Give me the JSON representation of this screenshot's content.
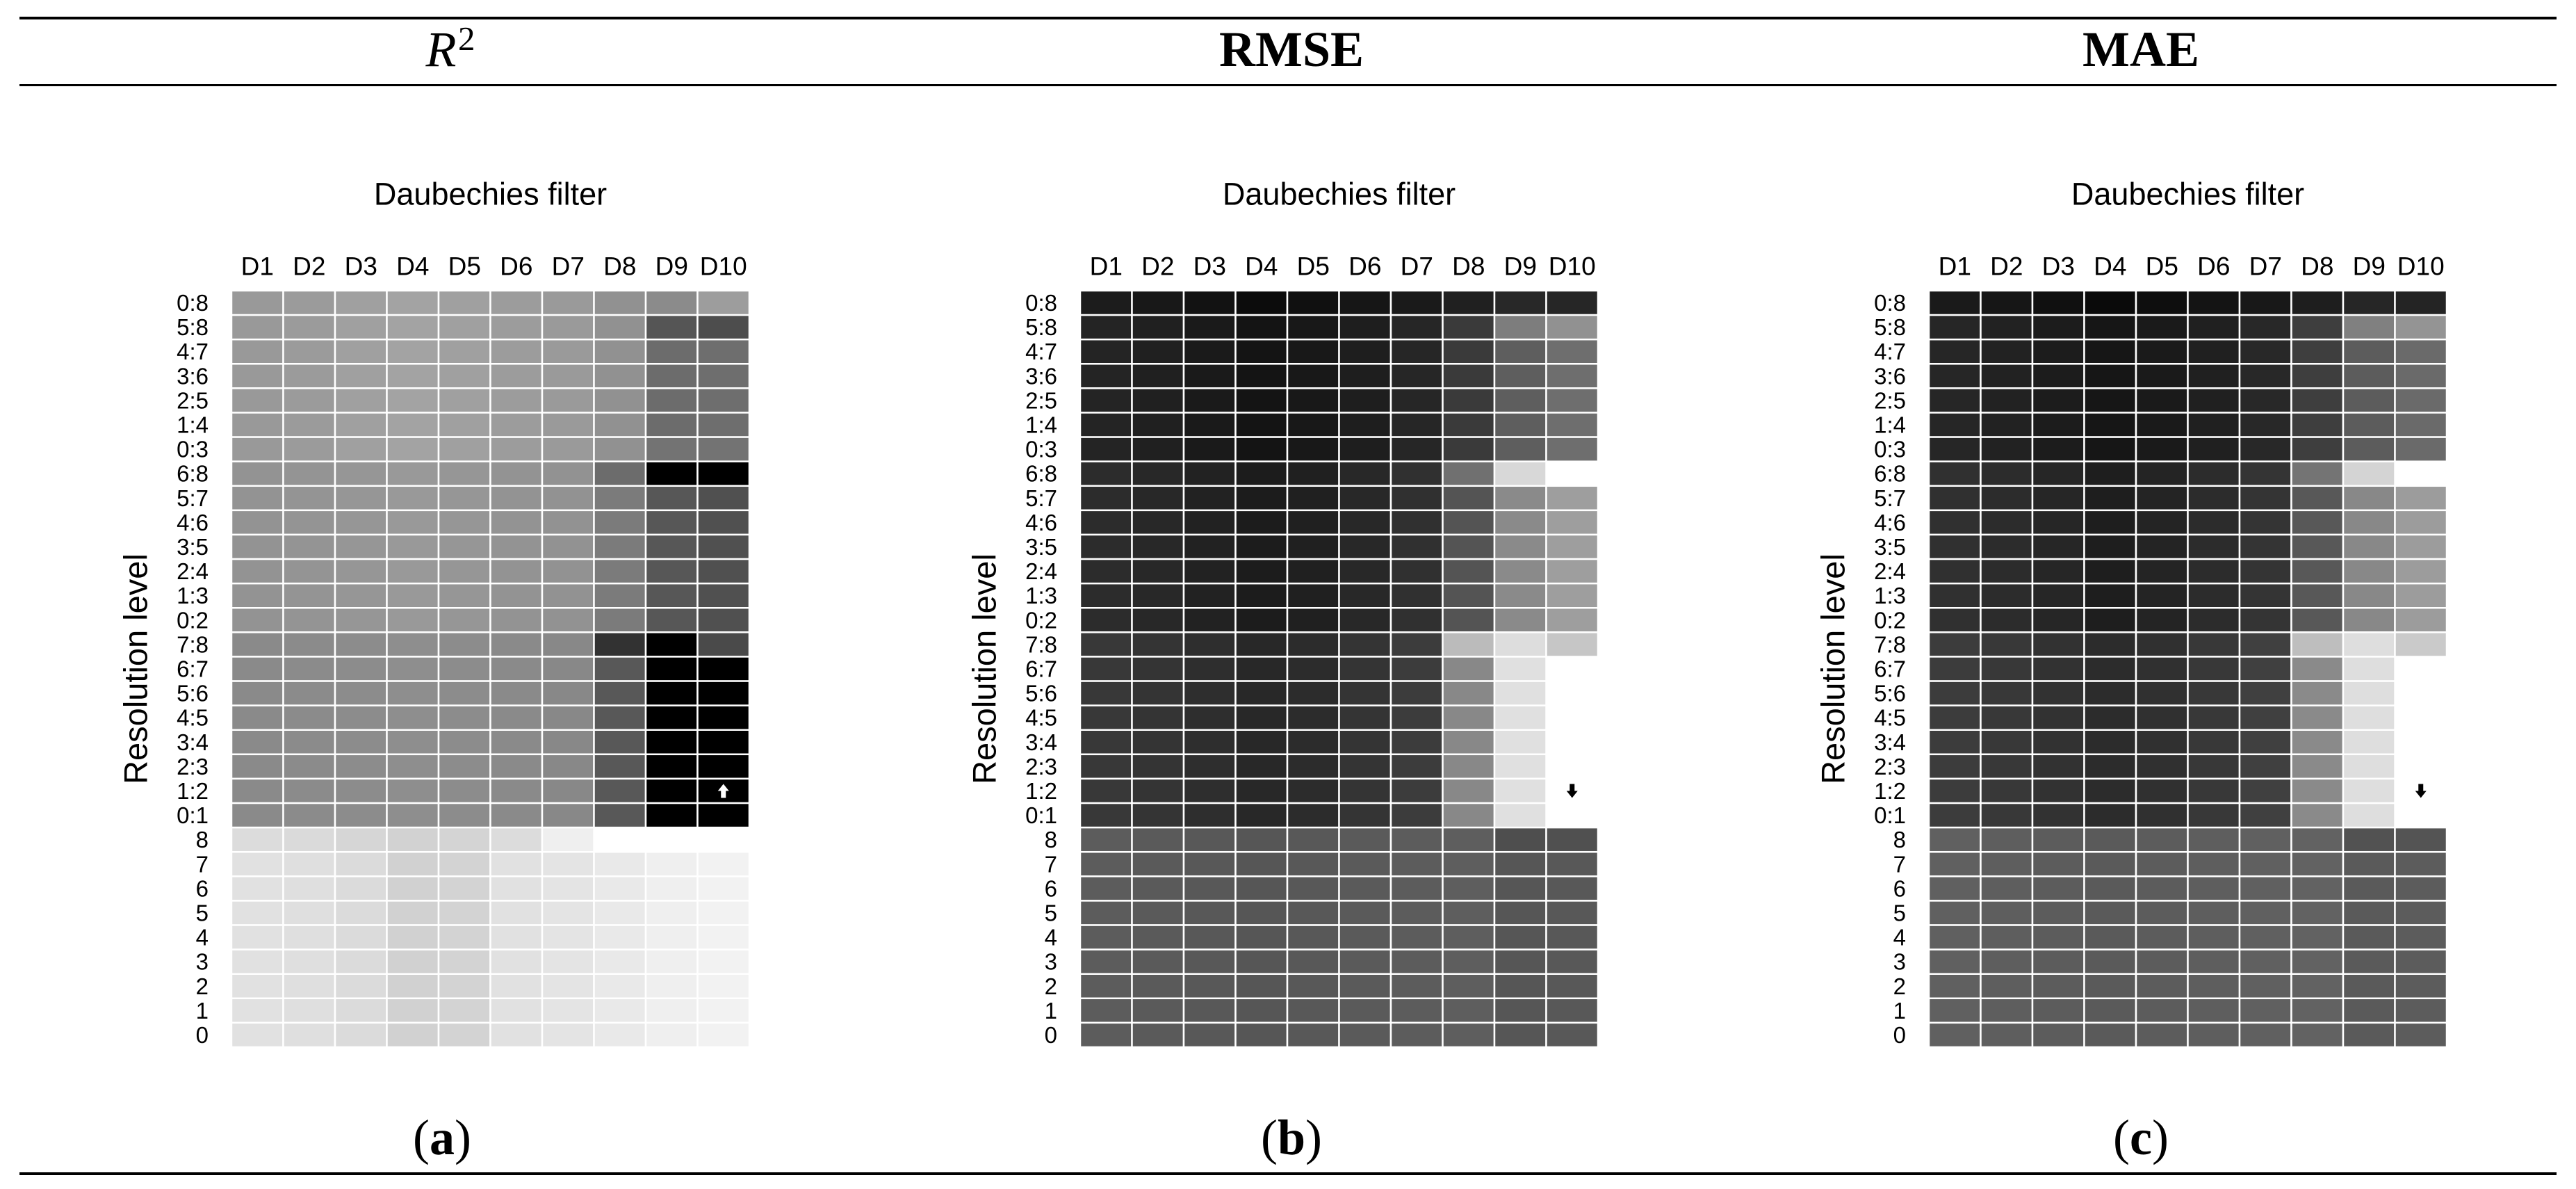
{
  "figure": {
    "columns": [
      {
        "symbol": "R",
        "superscript": "2"
      },
      {
        "title": "RMSE"
      },
      {
        "title": "MAE"
      }
    ],
    "panel_labels": [
      {
        "open": "(",
        "letter": "a",
        "close": ")"
      },
      {
        "open": "(",
        "letter": "b",
        "close": ")"
      },
      {
        "open": "(",
        "letter": "c",
        "close": ")"
      }
    ]
  },
  "chart_data": [
    {
      "type": "heatmap",
      "title": "Daubechies filter",
      "ylabel": "Resolution level",
      "x": [
        "D1",
        "D2",
        "D3",
        "D4",
        "D5",
        "D6",
        "D7",
        "D8",
        "D9",
        "D10"
      ],
      "y": [
        "0:8",
        "5:8",
        "4:7",
        "3:6",
        "2:5",
        "1:4",
        "0:3",
        "6:8",
        "5:7",
        "4:6",
        "3:5",
        "2:4",
        "1:3",
        "0:2",
        "7:8",
        "6:7",
        "5:6",
        "4:5",
        "3:4",
        "2:3",
        "1:2",
        "0:1",
        "8",
        "7",
        "6",
        "5",
        "4",
        "3",
        "2",
        "1",
        "0"
      ],
      "grid_color": "#ffffff",
      "values": [
        [
          153,
          155,
          160,
          163,
          160,
          156,
          154,
          145,
          139,
          157
        ],
        [
          153,
          155,
          160,
          163,
          160,
          156,
          154,
          145,
          85,
          77
        ],
        [
          153,
          155,
          160,
          163,
          160,
          156,
          154,
          145,
          108,
          110
        ],
        [
          153,
          155,
          160,
          163,
          160,
          156,
          154,
          145,
          108,
          110
        ],
        [
          153,
          155,
          160,
          163,
          160,
          156,
          154,
          145,
          108,
          110
        ],
        [
          153,
          155,
          160,
          163,
          160,
          156,
          154,
          145,
          108,
          110
        ],
        [
          153,
          155,
          160,
          163,
          160,
          156,
          154,
          145,
          115,
          115
        ],
        [
          147,
          148,
          150,
          153,
          150,
          147,
          146,
          108,
          0,
          0
        ],
        [
          147,
          148,
          150,
          153,
          150,
          147,
          146,
          123,
          87,
          80
        ],
        [
          147,
          148,
          150,
          153,
          150,
          147,
          146,
          123,
          87,
          80
        ],
        [
          147,
          148,
          150,
          153,
          150,
          147,
          146,
          123,
          87,
          80
        ],
        [
          147,
          148,
          150,
          153,
          150,
          147,
          146,
          123,
          87,
          80
        ],
        [
          147,
          148,
          150,
          153,
          150,
          147,
          146,
          123,
          87,
          80
        ],
        [
          147,
          148,
          150,
          153,
          150,
          147,
          146,
          123,
          87,
          80
        ],
        [
          138,
          139,
          140,
          142,
          140,
          138,
          136,
          50,
          0,
          74
        ],
        [
          138,
          139,
          140,
          142,
          140,
          138,
          136,
          88,
          0,
          0
        ],
        [
          138,
          139,
          140,
          142,
          140,
          138,
          136,
          88,
          0,
          0
        ],
        [
          138,
          139,
          140,
          142,
          140,
          138,
          136,
          88,
          0,
          0
        ],
        [
          138,
          139,
          140,
          142,
          140,
          138,
          136,
          88,
          0,
          0
        ],
        [
          138,
          139,
          140,
          142,
          140,
          138,
          136,
          88,
          0,
          0
        ],
        [
          138,
          139,
          140,
          142,
          140,
          138,
          136,
          88,
          0,
          0
        ],
        [
          138,
          139,
          140,
          142,
          140,
          138,
          136,
          88,
          0,
          0
        ],
        [
          220,
          218,
          214,
          210,
          212,
          220,
          239,
          null,
          null,
          null
        ],
        [
          225,
          223,
          219,
          209,
          211,
          225,
          228,
          233,
          239,
          242
        ],
        [
          225,
          223,
          219,
          209,
          211,
          225,
          228,
          233,
          239,
          242
        ],
        [
          225,
          223,
          219,
          209,
          211,
          225,
          228,
          233,
          239,
          242
        ],
        [
          225,
          223,
          219,
          209,
          211,
          225,
          228,
          233,
          239,
          242
        ],
        [
          225,
          223,
          219,
          209,
          211,
          225,
          228,
          233,
          239,
          242
        ],
        [
          225,
          223,
          219,
          209,
          211,
          225,
          228,
          233,
          239,
          242
        ],
        [
          225,
          223,
          219,
          209,
          211,
          225,
          228,
          233,
          239,
          242
        ],
        [
          225,
          223,
          219,
          209,
          211,
          225,
          228,
          233,
          239,
          242
        ]
      ],
      "marker": {
        "row_index": 20,
        "col_index": 9,
        "icon": "arrow-up-icon",
        "color": "#ffffff"
      }
    },
    {
      "type": "heatmap",
      "title": "Daubechies filter",
      "ylabel": "Resolution level",
      "x": [
        "D1",
        "D2",
        "D3",
        "D4",
        "D5",
        "D6",
        "D7",
        "D8",
        "D9",
        "D10"
      ],
      "y": [
        "0:8",
        "5:8",
        "4:7",
        "3:6",
        "2:5",
        "1:4",
        "0:3",
        "6:8",
        "5:7",
        "4:6",
        "3:5",
        "2:4",
        "1:3",
        "0:2",
        "7:8",
        "6:7",
        "5:6",
        "4:5",
        "3:4",
        "2:3",
        "1:2",
        "0:1",
        "8",
        "7",
        "6",
        "5",
        "4",
        "3",
        "2",
        "1",
        "0"
      ],
      "grid_color": "#ffffff",
      "values": [
        [
          28,
          24,
          18,
          12,
          16,
          22,
          26,
          32,
          40,
          38
        ],
        [
          36,
          32,
          26,
          20,
          24,
          30,
          38,
          58,
          125,
          145
        ],
        [
          36,
          32,
          26,
          20,
          24,
          30,
          38,
          58,
          94,
          110
        ],
        [
          36,
          32,
          26,
          20,
          24,
          30,
          38,
          58,
          94,
          110
        ],
        [
          36,
          32,
          26,
          20,
          24,
          30,
          38,
          58,
          94,
          110
        ],
        [
          36,
          32,
          26,
          20,
          24,
          30,
          38,
          58,
          94,
          110
        ],
        [
          36,
          32,
          26,
          20,
          24,
          30,
          38,
          58,
          94,
          110
        ],
        [
          44,
          40,
          34,
          28,
          32,
          40,
          48,
          112,
          216,
          null
        ],
        [
          44,
          40,
          34,
          28,
          32,
          40,
          48,
          84,
          138,
          158
        ],
        [
          44,
          40,
          34,
          28,
          32,
          40,
          48,
          84,
          138,
          158
        ],
        [
          44,
          40,
          34,
          28,
          32,
          40,
          48,
          84,
          138,
          158
        ],
        [
          44,
          40,
          34,
          28,
          32,
          40,
          48,
          84,
          138,
          158
        ],
        [
          44,
          40,
          34,
          28,
          32,
          40,
          48,
          84,
          138,
          158
        ],
        [
          44,
          40,
          34,
          28,
          32,
          40,
          48,
          84,
          138,
          158
        ],
        [
          56,
          52,
          46,
          40,
          44,
          52,
          60,
          187,
          221,
          198
        ],
        [
          56,
          52,
          46,
          40,
          44,
          52,
          60,
          136,
          224,
          null
        ],
        [
          56,
          52,
          46,
          40,
          44,
          52,
          60,
          136,
          224,
          null
        ],
        [
          56,
          52,
          46,
          40,
          44,
          52,
          60,
          136,
          224,
          null
        ],
        [
          56,
          52,
          46,
          40,
          44,
          52,
          60,
          136,
          224,
          null
        ],
        [
          56,
          52,
          46,
          40,
          44,
          52,
          60,
          136,
          224,
          null
        ],
        [
          56,
          52,
          46,
          40,
          44,
          52,
          60,
          136,
          224,
          null
        ],
        [
          56,
          52,
          46,
          40,
          44,
          52,
          60,
          136,
          224,
          null
        ],
        [
          92,
          90,
          88,
          86,
          88,
          90,
          92,
          94,
          78,
          80
        ],
        [
          92,
          90,
          88,
          86,
          88,
          90,
          92,
          94,
          86,
          88
        ],
        [
          92,
          90,
          88,
          86,
          88,
          90,
          92,
          94,
          86,
          88
        ],
        [
          92,
          90,
          88,
          86,
          88,
          90,
          92,
          94,
          86,
          88
        ],
        [
          92,
          90,
          88,
          86,
          88,
          90,
          92,
          94,
          86,
          88
        ],
        [
          92,
          90,
          88,
          86,
          88,
          90,
          92,
          94,
          86,
          88
        ],
        [
          92,
          90,
          88,
          86,
          88,
          90,
          92,
          94,
          86,
          88
        ],
        [
          92,
          90,
          88,
          86,
          88,
          90,
          92,
          94,
          86,
          88
        ],
        [
          92,
          90,
          88,
          86,
          88,
          90,
          92,
          94,
          86,
          88
        ]
      ],
      "marker": {
        "row_index": 20,
        "col_index": 9,
        "icon": "arrow-down-icon",
        "color": "#000000"
      }
    },
    {
      "type": "heatmap",
      "title": "Daubechies filter",
      "ylabel": "Resolution level",
      "x": [
        "D1",
        "D2",
        "D3",
        "D4",
        "D5",
        "D6",
        "D7",
        "D8",
        "D9",
        "D10"
      ],
      "y": [
        "0:8",
        "5:8",
        "4:7",
        "3:6",
        "2:5",
        "1:4",
        "0:3",
        "6:8",
        "5:7",
        "4:6",
        "3:5",
        "2:4",
        "1:3",
        "0:2",
        "7:8",
        "6:7",
        "5:6",
        "4:5",
        "3:4",
        "2:3",
        "1:2",
        "0:1",
        "8",
        "7",
        "6",
        "5",
        "4",
        "3",
        "2",
        "1",
        "0"
      ],
      "grid_color": "#ffffff",
      "values": [
        [
          26,
          22,
          16,
          10,
          14,
          20,
          24,
          30,
          38,
          36
        ],
        [
          38,
          34,
          28,
          22,
          26,
          32,
          40,
          62,
          128,
          148
        ],
        [
          38,
          34,
          28,
          22,
          26,
          32,
          40,
          62,
          92,
          106
        ],
        [
          38,
          34,
          28,
          22,
          26,
          32,
          40,
          62,
          92,
          106
        ],
        [
          38,
          34,
          28,
          22,
          26,
          32,
          40,
          62,
          92,
          106
        ],
        [
          38,
          34,
          28,
          22,
          26,
          32,
          40,
          62,
          92,
          106
        ],
        [
          38,
          34,
          28,
          22,
          26,
          32,
          40,
          62,
          92,
          106
        ],
        [
          48,
          44,
          38,
          30,
          36,
          44,
          52,
          116,
          212,
          null
        ],
        [
          48,
          44,
          38,
          30,
          36,
          44,
          52,
          88,
          136,
          156
        ],
        [
          48,
          44,
          38,
          30,
          36,
          44,
          52,
          88,
          136,
          156
        ],
        [
          48,
          44,
          38,
          30,
          36,
          44,
          52,
          88,
          136,
          156
        ],
        [
          48,
          44,
          38,
          30,
          36,
          44,
          52,
          88,
          136,
          156
        ],
        [
          48,
          44,
          38,
          30,
          36,
          44,
          52,
          88,
          136,
          156
        ],
        [
          48,
          44,
          38,
          30,
          36,
          44,
          52,
          88,
          136,
          156
        ],
        [
          60,
          56,
          50,
          44,
          48,
          56,
          64,
          190,
          222,
          202
        ],
        [
          60,
          56,
          50,
          44,
          48,
          56,
          64,
          138,
          222,
          null
        ],
        [
          60,
          56,
          50,
          44,
          48,
          56,
          64,
          138,
          222,
          null
        ],
        [
          60,
          56,
          50,
          44,
          48,
          56,
          64,
          138,
          222,
          null
        ],
        [
          60,
          56,
          50,
          44,
          48,
          56,
          64,
          138,
          222,
          null
        ],
        [
          60,
          56,
          50,
          44,
          48,
          56,
          64,
          138,
          222,
          null
        ],
        [
          60,
          56,
          50,
          44,
          48,
          56,
          64,
          138,
          222,
          null
        ],
        [
          60,
          56,
          50,
          44,
          48,
          56,
          64,
          138,
          222,
          null
        ],
        [
          96,
          94,
          92,
          90,
          92,
          94,
          96,
          98,
          82,
          84
        ],
        [
          96,
          94,
          92,
          90,
          92,
          94,
          96,
          98,
          90,
          92
        ],
        [
          96,
          94,
          92,
          90,
          92,
          94,
          96,
          98,
          90,
          92
        ],
        [
          96,
          94,
          92,
          90,
          92,
          94,
          96,
          98,
          90,
          92
        ],
        [
          96,
          94,
          92,
          90,
          92,
          94,
          96,
          98,
          90,
          92
        ],
        [
          96,
          94,
          92,
          90,
          92,
          94,
          96,
          98,
          90,
          92
        ],
        [
          96,
          94,
          92,
          90,
          92,
          94,
          96,
          98,
          90,
          92
        ],
        [
          96,
          94,
          92,
          90,
          92,
          94,
          96,
          98,
          90,
          92
        ],
        [
          96,
          94,
          92,
          90,
          92,
          94,
          96,
          98,
          90,
          92
        ]
      ],
      "marker": {
        "row_index": 20,
        "col_index": 9,
        "icon": "arrow-down-icon",
        "color": "#000000"
      }
    }
  ]
}
